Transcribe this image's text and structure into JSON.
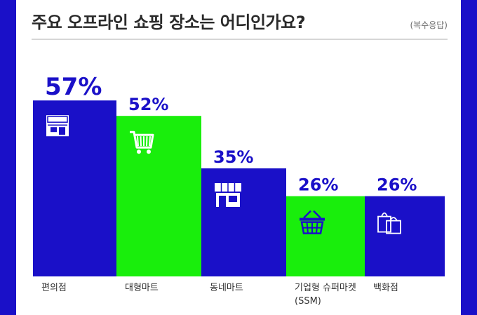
{
  "header": {
    "title": "주요 오프라인 쇼핑 장소는 어디인가요?",
    "note": "(복수응답)"
  },
  "colors": {
    "blue": "#1a10c8",
    "green": "#19ee0c",
    "frame": "#1a10c8"
  },
  "chart_data": {
    "type": "bar",
    "categories": [
      "편의점",
      "대형마트",
      "동네마트",
      "기업형 슈퍼마켓 (SSM)",
      "백화점"
    ],
    "category_lines": [
      [
        "편의점"
      ],
      [
        "대형마트"
      ],
      [
        "동네마트"
      ],
      [
        "기업형 슈퍼마켓",
        "(SSM)"
      ],
      [
        "백화점"
      ]
    ],
    "values": [
      57,
      52,
      35,
      26,
      26
    ],
    "value_labels": [
      "57%",
      "52%",
      "35%",
      "26%",
      "26%"
    ],
    "bar_colors": [
      "#1a10c8",
      "#19ee0c",
      "#1a10c8",
      "#19ee0c",
      "#1a10c8"
    ],
    "icons": [
      "convenience-store-icon",
      "shopping-cart-icon",
      "shop-icon",
      "basket-icon",
      "shopping-bags-icon"
    ],
    "unit": "%"
  }
}
